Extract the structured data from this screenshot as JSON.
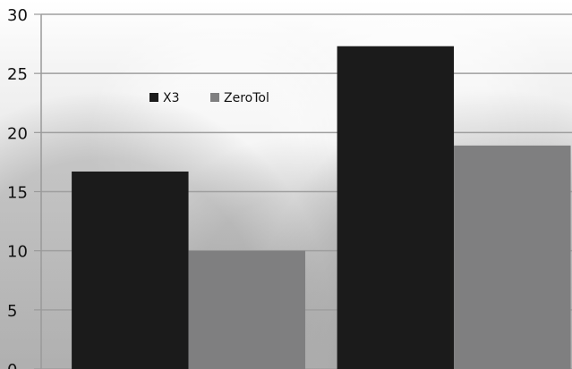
{
  "chart_data": {
    "type": "bar",
    "categories": [
      "",
      ""
    ],
    "series": [
      {
        "name": "X3",
        "values": [
          16.7,
          27.3
        ],
        "color": "#1b1b1b"
      },
      {
        "name": "ZeroTol",
        "values": [
          10.0,
          18.9
        ],
        "color": "#7f7f80"
      }
    ],
    "yticks": [
      "30",
      "25",
      "20",
      "15",
      "10",
      "5",
      "0"
    ],
    "ylim": [
      0,
      30
    ],
    "grid": true,
    "legend_placement": "top-left"
  }
}
